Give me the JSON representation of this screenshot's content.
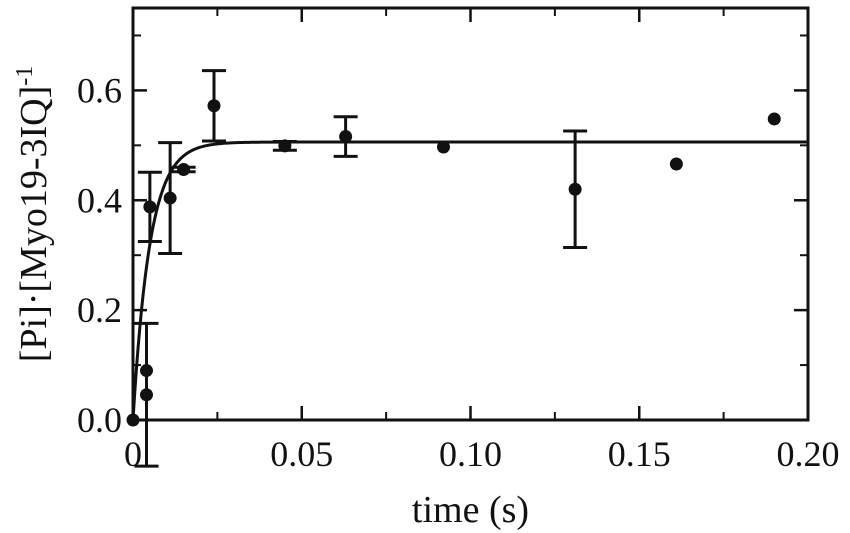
{
  "chart_data": {
    "type": "scatter",
    "xlabel": "time (s)",
    "ylabel": "[Pi]·[Myo19-3IQ]",
    "ylabel_superscript": "-1",
    "xlim": [
      0,
      0.2
    ],
    "ylim": [
      0,
      0.75
    ],
    "xticks": [
      0,
      0.05,
      0.1,
      0.15,
      0.2
    ],
    "xtick_labels": [
      "0",
      "0.05",
      "0.10",
      "0.15",
      "0.20"
    ],
    "yticks": [
      0.0,
      0.2,
      0.4,
      0.6
    ],
    "ytick_labels": [
      "0.0",
      "0.2",
      "0.4",
      "0.6"
    ],
    "grid": false,
    "legend": "none",
    "points": [
      {
        "x": 0.0,
        "y": 0.0
      },
      {
        "x": 0.004,
        "y": 0.09
      },
      {
        "x": 0.004,
        "y": 0.046,
        "err": 0.13
      },
      {
        "x": 0.005,
        "y": 0.388,
        "err": 0.063
      },
      {
        "x": 0.011,
        "y": 0.404,
        "err": 0.101
      },
      {
        "x": 0.015,
        "y": 0.456,
        "err": 0.004
      },
      {
        "x": 0.024,
        "y": 0.572,
        "err": 0.064
      },
      {
        "x": 0.045,
        "y": 0.499,
        "err": 0.008
      },
      {
        "x": 0.063,
        "y": 0.516,
        "err": 0.036
      },
      {
        "x": 0.092,
        "y": 0.497
      },
      {
        "x": 0.131,
        "y": 0.42,
        "err": 0.106
      },
      {
        "x": 0.161,
        "y": 0.466
      },
      {
        "x": 0.19,
        "y": 0.548
      }
    ],
    "fit": {
      "type": "single-exponential",
      "amplitude": 0.506,
      "rate": 200
    }
  }
}
